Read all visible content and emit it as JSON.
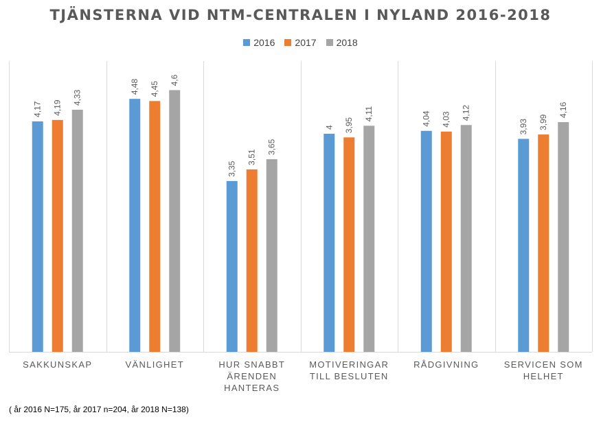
{
  "chart_data": {
    "type": "bar",
    "title": "TJÄNSTERNA VID NTM-CENTRALEN I NYLAND 2016-2018",
    "categories": [
      "SAKKUNSKAP",
      "VÄNLIGHET",
      "HUR SNABBT ÄRENDEN HANTERAS",
      "MOTIVERINGAR TILL BESLUTEN",
      "RÅDGIVNING",
      "SERVICEN SOM HELHET"
    ],
    "category_lines": [
      [
        "SAKKUNSKAP"
      ],
      [
        "VÄNLIGHET"
      ],
      [
        "HUR SNABBT",
        "ÄRENDEN",
        "HANTERAS"
      ],
      [
        "MOTIVERINGAR",
        "TILL BESLUTEN"
      ],
      [
        "RÅDGIVNING"
      ],
      [
        "SERVICEN SOM",
        "HELHET"
      ]
    ],
    "series": [
      {
        "name": "2016",
        "color": "#5B9BD5",
        "values": [
          4.17,
          4.48,
          3.35,
          4,
          4.04,
          3.93
        ],
        "labels": [
          "4,17",
          "4,48",
          "3,35",
          "4",
          "4,04",
          "3,93"
        ]
      },
      {
        "name": "2017",
        "color": "#ED7D31",
        "values": [
          4.19,
          4.45,
          3.51,
          3.95,
          4.03,
          3.99
        ],
        "labels": [
          "4,19",
          "4,45",
          "3,51",
          "3,95",
          "4,03",
          "3,99"
        ]
      },
      {
        "name": "2018",
        "color": "#A5A5A5",
        "values": [
          4.33,
          4.6,
          3.65,
          4.11,
          4.12,
          4.16
        ],
        "labels": [
          "4,33",
          "4,6",
          "3,65",
          "4,11",
          "4,12",
          "4,16"
        ]
      }
    ],
    "ylim": [
      1,
      5
    ],
    "grid": false,
    "legend_position": "top"
  },
  "footnote": "( år 2016 N=175, år 2017 n=204, år 2018 N=138)"
}
